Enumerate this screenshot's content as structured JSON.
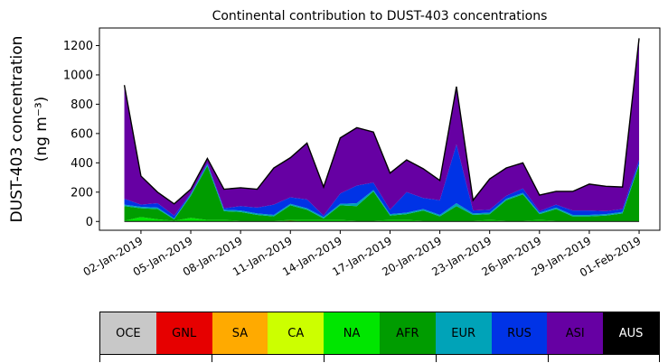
{
  "chart_data": {
    "type": "area",
    "title": "Continental contribution to DUST-403 concentrations",
    "ylabel_line1": "DUST-403 concentration",
    "ylabel_line2": "(ng m⁻³)",
    "ylim": [
      -60,
      1320
    ],
    "yticks": [
      0,
      200,
      400,
      600,
      800,
      1000,
      1200
    ],
    "xlim": [
      "2018-12-30T12",
      "2019-02-02T06"
    ],
    "x_tick_labels": [
      "02-Jan-2019",
      "05-Jan-2019",
      "08-Jan-2019",
      "11-Jan-2019",
      "14-Jan-2019",
      "17-Jan-2019",
      "20-Jan-2019",
      "23-Jan-2019",
      "26-Jan-2019",
      "29-Jan-2019",
      "01-Feb-2019"
    ],
    "x_tick_dates": [
      "2019-01-02",
      "2019-01-05",
      "2019-01-08",
      "2019-01-11",
      "2019-01-14",
      "2019-01-17",
      "2019-01-20",
      "2019-01-23",
      "2019-01-26",
      "2019-01-29",
      "2019-02-01"
    ],
    "x_dates": [
      "2019-01-01",
      "2019-01-02",
      "2019-01-03",
      "2019-01-04",
      "2019-01-05",
      "2019-01-06",
      "2019-01-07",
      "2019-01-08",
      "2019-01-09",
      "2019-01-10",
      "2019-01-11",
      "2019-01-12",
      "2019-01-13",
      "2019-01-14",
      "2019-01-15",
      "2019-01-16",
      "2019-01-17",
      "2019-01-18",
      "2019-01-19",
      "2019-01-20",
      "2019-01-21",
      "2019-01-22",
      "2019-01-23",
      "2019-01-24",
      "2019-01-25",
      "2019-01-26",
      "2019-01-27",
      "2019-01-28",
      "2019-01-29",
      "2019-01-30",
      "2019-01-31",
      "2019-02-01"
    ],
    "series": [
      {
        "name": "OCE",
        "color": "#c8c8c8",
        "values": [
          0,
          0,
          0,
          0,
          0,
          0,
          0,
          0,
          0,
          0,
          0,
          0,
          0,
          0,
          0,
          0,
          0,
          0,
          0,
          0,
          0,
          0,
          0,
          0,
          0,
          0,
          0,
          0,
          0,
          0,
          0,
          0
        ]
      },
      {
        "name": "GNL",
        "color": "#e60000",
        "values": [
          0,
          0,
          0,
          0,
          0,
          0,
          0,
          0,
          0,
          0,
          5,
          0,
          0,
          0,
          0,
          0,
          0,
          0,
          0,
          0,
          0,
          0,
          0,
          0,
          0,
          0,
          0,
          0,
          0,
          0,
          0,
          0
        ]
      },
      {
        "name": "SA",
        "color": "#ffaa00",
        "values": [
          0,
          0,
          0,
          0,
          0,
          0,
          0,
          0,
          0,
          0,
          0,
          0,
          0,
          0,
          0,
          0,
          0,
          0,
          0,
          0,
          0,
          0,
          0,
          0,
          0,
          0,
          0,
          0,
          0,
          0,
          0,
          0
        ]
      },
      {
        "name": "CA",
        "color": "#ccff00",
        "values": [
          0,
          0,
          0,
          0,
          0,
          0,
          0,
          0,
          0,
          0,
          0,
          0,
          0,
          0,
          0,
          0,
          0,
          0,
          0,
          0,
          0,
          0,
          0,
          0,
          0,
          0,
          0,
          0,
          0,
          0,
          0,
          0
        ]
      },
      {
        "name": "NA",
        "color": "#00e600",
        "values": [
          5,
          30,
          15,
          5,
          25,
          10,
          10,
          5,
          5,
          5,
          5,
          10,
          10,
          10,
          5,
          5,
          10,
          10,
          5,
          5,
          5,
          5,
          10,
          5,
          5,
          10,
          5,
          5,
          5,
          5,
          5,
          5
        ]
      },
      {
        "name": "AFR",
        "color": "#009c00",
        "values": [
          100,
          60,
          70,
          10,
          150,
          370,
          60,
          60,
          40,
          30,
          100,
          70,
          10,
          100,
          100,
          200,
          30,
          40,
          70,
          30,
          100,
          40,
          40,
          140,
          180,
          40,
          80,
          30,
          30,
          35,
          50,
          380
        ]
      },
      {
        "name": "EUR",
        "color": "#00a3b8",
        "values": [
          10,
          10,
          10,
          5,
          10,
          10,
          10,
          10,
          10,
          10,
          10,
          10,
          10,
          10,
          20,
          10,
          10,
          10,
          10,
          10,
          20,
          10,
          10,
          10,
          10,
          10,
          10,
          10,
          10,
          10,
          10,
          10
        ]
      },
      {
        "name": "RUS",
        "color": "#0033e6",
        "values": [
          40,
          15,
          30,
          20,
          5,
          10,
          10,
          30,
          40,
          70,
          45,
          60,
          10,
          70,
          120,
          50,
          30,
          140,
          75,
          100,
          400,
          20,
          20,
          20,
          30,
          10,
          20,
          30,
          30,
          20,
          20,
          25
        ]
      },
      {
        "name": "ASI",
        "color": "#6600a3",
        "values": [
          775,
          195,
          75,
          80,
          30,
          30,
          130,
          125,
          125,
          250,
          270,
          385,
          195,
          380,
          395,
          345,
          250,
          220,
          200,
          135,
          395,
          70,
          210,
          190,
          175,
          110,
          90,
          130,
          180,
          170,
          150,
          830
        ]
      },
      {
        "name": "AUS",
        "color": "#000000",
        "values": [
          0,
          0,
          0,
          0,
          0,
          0,
          0,
          0,
          0,
          0,
          0,
          0,
          0,
          0,
          0,
          0,
          0,
          0,
          0,
          0,
          0,
          0,
          0,
          0,
          0,
          0,
          0,
          0,
          0,
          0,
          0,
          0
        ]
      }
    ],
    "legend": [
      "OCE",
      "GNL",
      "SA",
      "CA",
      "NA",
      "AFR",
      "EUR",
      "RUS",
      "ASI",
      "AUS"
    ],
    "legend_placement": "bottom colorbar"
  }
}
